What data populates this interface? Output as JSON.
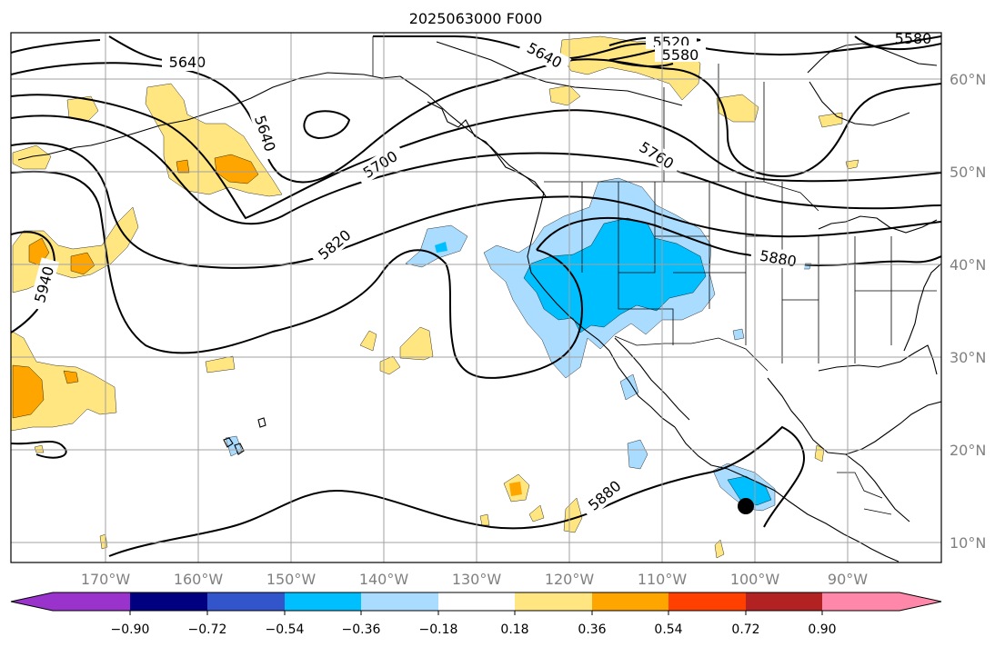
{
  "title": "2025063000 F000",
  "lon_labels": [
    "170°W",
    "160°W",
    "150°W",
    "140°W",
    "130°W",
    "120°W",
    "110°W",
    "100°W",
    "90°W"
  ],
  "lat_labels": [
    "60°N",
    "50°N",
    "40°N",
    "30°N",
    "20°N",
    "10°N"
  ],
  "contour_labels": [
    "5640",
    "5640",
    "5520",
    "5580",
    "5640",
    "5700",
    "5760",
    "5820",
    "5880",
    "5880",
    "5940",
    "5580"
  ],
  "colorbar": {
    "ticks": [
      "−0.90",
      "−0.72",
      "−0.54",
      "−0.36",
      "−0.18",
      "0.18",
      "0.36",
      "0.54",
      "0.72",
      "0.90"
    ],
    "colors": [
      "#9933cc",
      "#000080",
      "#3355cc",
      "#00bfff",
      "#aadcff",
      "#ffffff",
      "#ffe680",
      "#ffa500",
      "#ff4000",
      "#b22222",
      "#ff88aa"
    ]
  },
  "palette": {
    "light_blue": "#aadcff",
    "blue": "#00bfff",
    "light_yellow": "#ffe680",
    "orange": "#ffa500"
  },
  "storm_marker": "filled-black-circle"
}
